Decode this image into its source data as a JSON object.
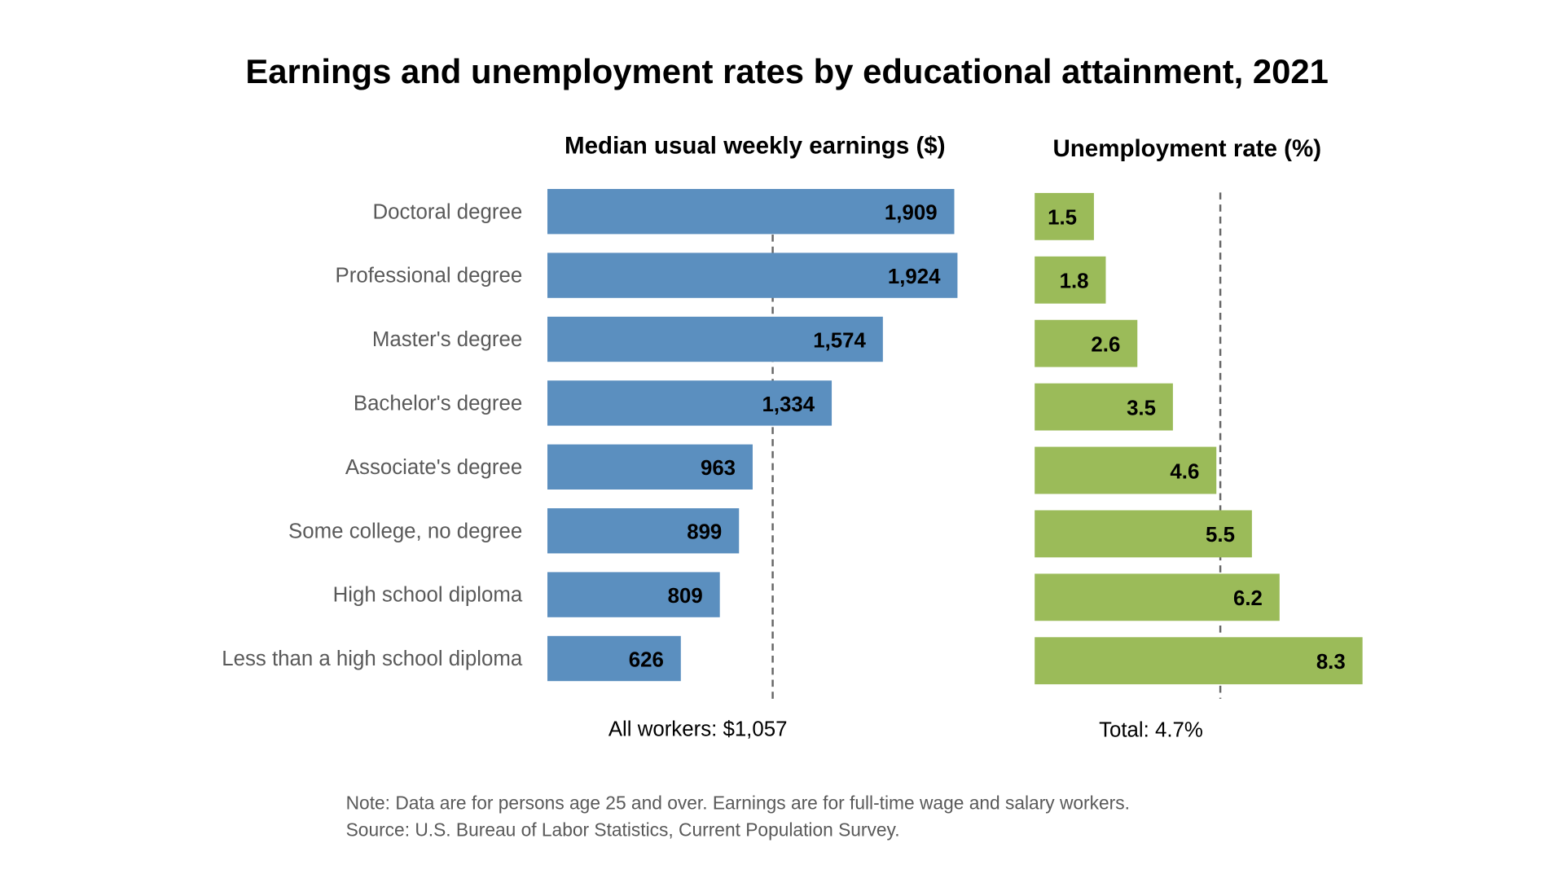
{
  "chart_data": [
    {
      "type": "bar",
      "orientation": "horizontal",
      "title": "Earnings and unemployment rates by educational attainment, 2021",
      "subtitle": "Median usual weekly earnings ($)",
      "categories": [
        "Doctoral degree",
        "Professional degree",
        "Master's degree",
        "Bachelor's degree",
        "Associate's degree",
        "Some college, no degree",
        "High school diploma",
        "Less than a high school diploma"
      ],
      "values": [
        1909,
        1924,
        1574,
        1334,
        963,
        899,
        809,
        626
      ],
      "value_labels": [
        "1,909",
        "1,924",
        "1,574",
        "1,334",
        "963",
        "899",
        "809",
        "626"
      ],
      "reference_value": 1057,
      "reference_label": "All workers: $1,057",
      "color": "#5b8fbf",
      "grid": false
    },
    {
      "type": "bar",
      "orientation": "horizontal",
      "subtitle": "Unemployment rate (%)",
      "categories": [
        "Doctoral degree",
        "Professional degree",
        "Master's degree",
        "Bachelor's degree",
        "Associate's degree",
        "Some college, no degree",
        "High school diploma",
        "Less than a high school diploma"
      ],
      "values": [
        1.5,
        1.8,
        2.6,
        3.5,
        4.6,
        5.5,
        6.2,
        8.3
      ],
      "value_labels": [
        "1.5",
        "1.8",
        "2.6",
        "3.5",
        "4.6",
        "5.5",
        "6.2",
        "8.3"
      ],
      "reference_value": 4.7,
      "reference_label": "Total: 4.7%",
      "color": "#9bbb59",
      "grid": false
    }
  ],
  "note": "Note: Data are for persons age 25 and over. Earnings are for full-time wage and salary workers.",
  "source": "Source: U.S. Bureau of Labor Statistics, Current Population Survey."
}
